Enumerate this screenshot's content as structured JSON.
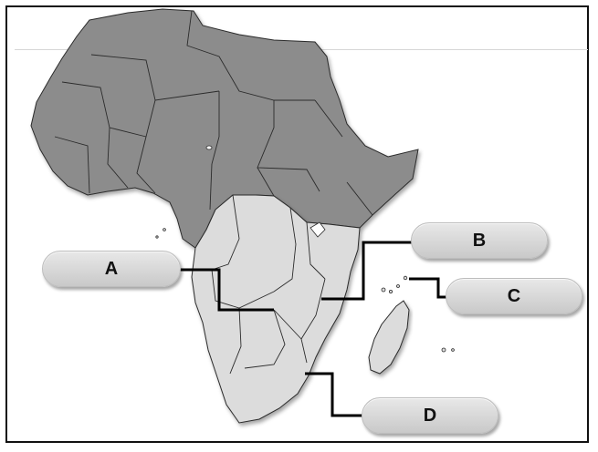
{
  "labels": {
    "a": "A",
    "b": "B",
    "c": "C",
    "d": "D"
  },
  "colors": {
    "dark_region": "#8c8c8c",
    "light_region": "#dcdcdc",
    "border": "#2b2b2b",
    "leader_line": "#000000"
  }
}
